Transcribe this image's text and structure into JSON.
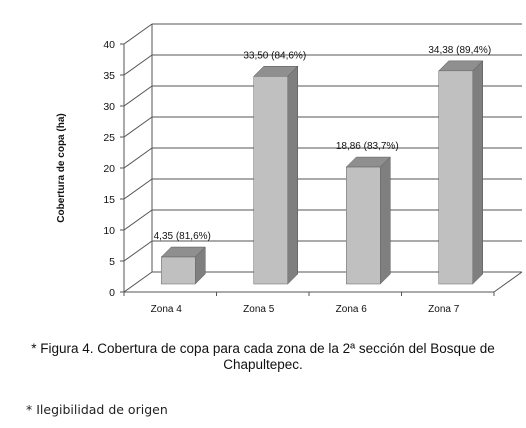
{
  "chart_data": {
    "type": "bar",
    "three_d": true,
    "categories": [
      "Zona 4",
      "Zona 5",
      "Zona 6",
      "Zona 7"
    ],
    "values": [
      4.35,
      33.5,
      18.86,
      34.38
    ],
    "data_labels": [
      "4,35 (81,6%)",
      "33,50 (84,6%)",
      "18,86 (83,7%)",
      "34,38 (89,4%)"
    ],
    "ylabel": "Cobertura de copa (ha)",
    "xlabel": "",
    "ylim": [
      0,
      40
    ],
    "yticks": [
      "0",
      "5",
      "10",
      "15",
      "20",
      "25",
      "30",
      "35",
      "40"
    ],
    "grid": true,
    "legend": "none",
    "colors": {
      "bar_front": "#c0c0c0",
      "bar_side": "#7f7f7f",
      "bar_top": "#8f8f8f",
      "grid": "#555555"
    }
  },
  "caption": {
    "line1": "* Figura 4. Cobertura de copa para cada zona de la 2ª sección del Bosque de",
    "line2": "Chapultepec."
  },
  "note": "* Ilegibilidad de origen"
}
